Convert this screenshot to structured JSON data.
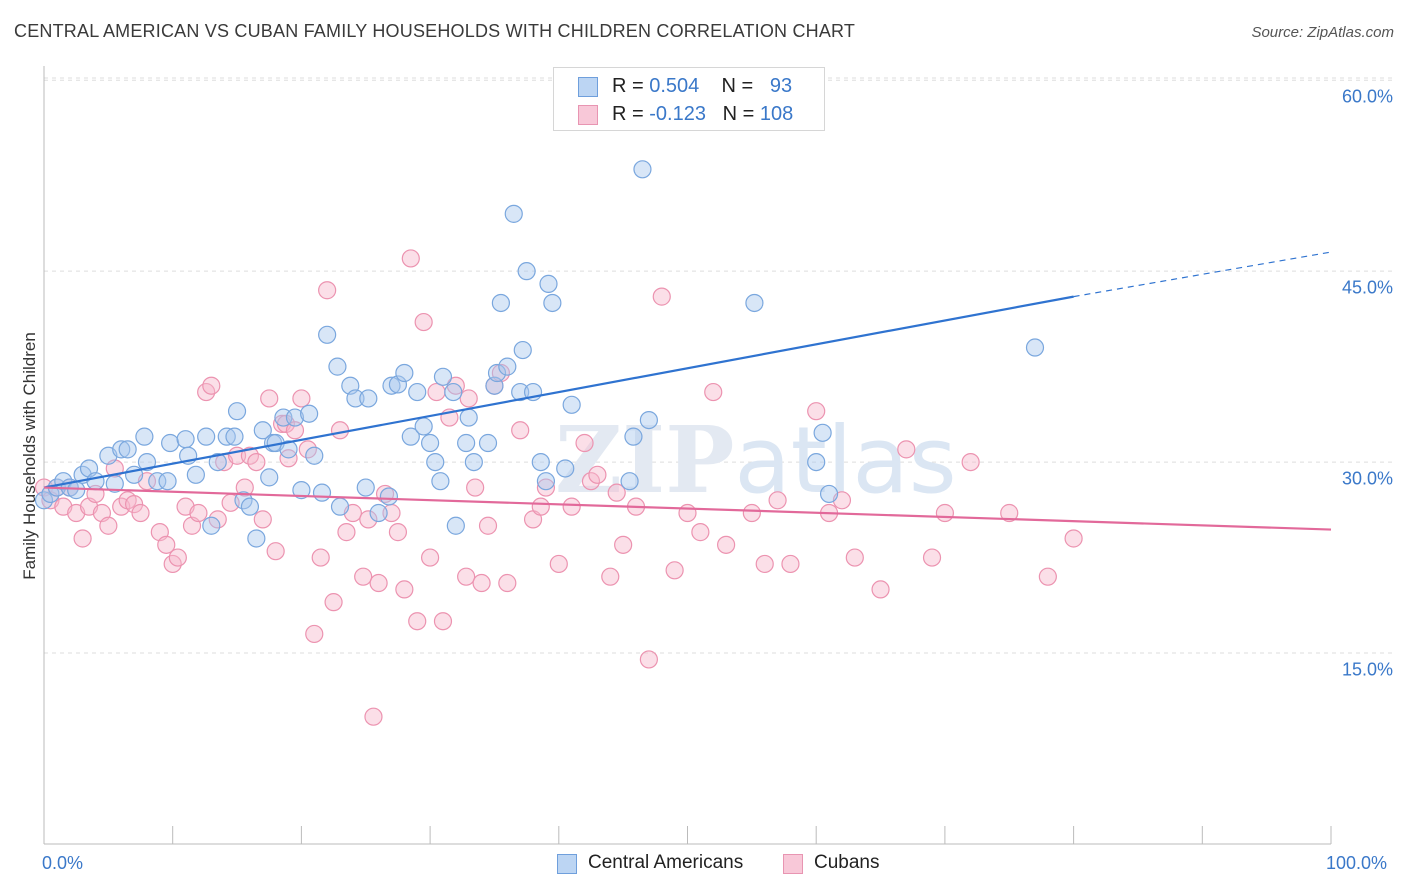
{
  "title": "CENTRAL AMERICAN VS CUBAN FAMILY HOUSEHOLDS WITH CHILDREN CORRELATION CHART",
  "source": "Source: ZipAtlas.com",
  "watermark": "ZIPatlas",
  "legend_top": {
    "rows": [
      {
        "r_label": "R = ",
        "r_value": "0.504",
        "n_label": "N = ",
        "n_value": "93"
      },
      {
        "r_label": "R = ",
        "r_value": "-0.123",
        "n_label": "N = ",
        "n_value": "108"
      }
    ]
  },
  "legend_bottom": [
    "Central Americans",
    "Cubans"
  ],
  "colors": {
    "blue_fill": "#a9c8ee",
    "blue_stroke": "#7aa7de",
    "blue_line": "#2f73d0",
    "pink_fill": "#f6b9cc",
    "pink_stroke": "#ec93b0",
    "pink_line": "#e2699a",
    "tick_text": "#3a78c9",
    "grid": "#dddddd"
  },
  "chart_data": {
    "type": "scatter",
    "title": "CENTRAL AMERICAN VS CUBAN FAMILY HOUSEHOLDS WITH CHILDREN CORRELATION CHART",
    "xlabel": "",
    "ylabel": "Family Households with Children",
    "xlim": [
      0,
      100
    ],
    "ylim": [
      0,
      63
    ],
    "y_ticks": [
      15,
      30,
      45,
      60
    ],
    "y_tick_labels": [
      "15.0%",
      "30.0%",
      "45.0%",
      "60.0%"
    ],
    "x_tick_labels": [
      "0.0%",
      "100.0%"
    ],
    "grid": "horizontal dashed",
    "legend_position": "top-center and bottom",
    "series": [
      {
        "name": "Central Americans",
        "r": 0.504,
        "n": 93,
        "trend": {
          "x0": 0,
          "y0": 28.0,
          "x1": 80,
          "y1": 43.0,
          "dashed_to_x": 100,
          "dashed_to_y": 46.5
        },
        "points": [
          [
            0,
            27
          ],
          [
            0.5,
            27.5
          ],
          [
            1,
            28
          ],
          [
            1.5,
            28.5
          ],
          [
            2,
            28
          ],
          [
            2.5,
            27.8
          ],
          [
            3,
            29
          ],
          [
            3.5,
            29.5
          ],
          [
            4,
            28.5
          ],
          [
            5,
            30.5
          ],
          [
            5.5,
            28.3
          ],
          [
            6,
            31
          ],
          [
            6.5,
            31
          ],
          [
            7,
            29
          ],
          [
            7.8,
            32
          ],
          [
            8,
            30
          ],
          [
            8.8,
            28.5
          ],
          [
            9.6,
            28.5
          ],
          [
            9.8,
            31.5
          ],
          [
            11,
            31.8
          ],
          [
            11.2,
            30.5
          ],
          [
            11.8,
            29
          ],
          [
            12.6,
            32
          ],
          [
            13,
            25
          ],
          [
            13.5,
            30
          ],
          [
            14.2,
            32
          ],
          [
            14.8,
            32
          ],
          [
            15,
            34
          ],
          [
            15.5,
            27
          ],
          [
            16,
            26.5
          ],
          [
            16.5,
            24
          ],
          [
            17,
            32.5
          ],
          [
            17.5,
            28.8
          ],
          [
            17.8,
            31.5
          ],
          [
            18,
            31.5
          ],
          [
            18.6,
            33.5
          ],
          [
            19,
            31
          ],
          [
            19.5,
            33.5
          ],
          [
            20,
            27.8
          ],
          [
            20.6,
            33.8
          ],
          [
            21,
            30.5
          ],
          [
            21.6,
            27.6
          ],
          [
            22,
            40
          ],
          [
            22.8,
            37.5
          ],
          [
            23,
            26.5
          ],
          [
            23.8,
            36
          ],
          [
            24.2,
            35
          ],
          [
            25,
            28
          ],
          [
            25.2,
            35
          ],
          [
            26,
            26
          ],
          [
            26.8,
            27.3
          ],
          [
            27,
            36
          ],
          [
            27.5,
            36.1
          ],
          [
            28,
            37
          ],
          [
            28.5,
            32
          ],
          [
            29,
            35.5
          ],
          [
            29.5,
            32.8
          ],
          [
            30,
            31.5
          ],
          [
            30.4,
            30
          ],
          [
            30.8,
            28.5
          ],
          [
            31,
            36.7
          ],
          [
            31.8,
            35.5
          ],
          [
            32,
            25
          ],
          [
            32.8,
            31.5
          ],
          [
            33,
            33.5
          ],
          [
            33.4,
            30
          ],
          [
            34.5,
            31.5
          ],
          [
            35,
            36
          ],
          [
            35.2,
            37
          ],
          [
            35.5,
            42.5
          ],
          [
            36,
            37.5
          ],
          [
            36.5,
            49.5
          ],
          [
            37,
            35.5
          ],
          [
            37.2,
            38.8
          ],
          [
            37.5,
            45
          ],
          [
            38,
            35.5
          ],
          [
            38.6,
            30
          ],
          [
            39,
            28.5
          ],
          [
            39.2,
            44
          ],
          [
            39.5,
            42.5
          ],
          [
            40.5,
            29.5
          ],
          [
            41,
            34.5
          ],
          [
            45.5,
            28.5
          ],
          [
            45.8,
            32
          ],
          [
            46.5,
            53
          ],
          [
            47,
            33.3
          ],
          [
            55.2,
            42.5
          ],
          [
            60,
            30
          ],
          [
            60.5,
            32.3
          ],
          [
            61,
            27.5
          ],
          [
            77,
            39
          ]
        ]
      },
      {
        "name": "Cubans",
        "r": -0.123,
        "n": 108,
        "trend": {
          "x0": 0,
          "y0": 28.0,
          "x1": 100,
          "y1": 24.7
        },
        "points": [
          [
            0,
            28
          ],
          [
            0.5,
            27
          ],
          [
            1,
            28
          ],
          [
            1.5,
            26.5
          ],
          [
            2,
            28
          ],
          [
            2.5,
            26
          ],
          [
            3,
            24
          ],
          [
            3.5,
            26.5
          ],
          [
            4,
            27.5
          ],
          [
            4.5,
            26
          ],
          [
            5,
            25
          ],
          [
            5.5,
            29.5
          ],
          [
            6,
            26.5
          ],
          [
            6.5,
            27
          ],
          [
            7,
            26.7
          ],
          [
            7.5,
            26
          ],
          [
            8,
            28.5
          ],
          [
            9,
            24.5
          ],
          [
            9.5,
            23.5
          ],
          [
            10,
            22
          ],
          [
            10.4,
            22.5
          ],
          [
            11,
            26.5
          ],
          [
            11.5,
            25
          ],
          [
            12,
            26
          ],
          [
            12.6,
            35.5
          ],
          [
            13,
            36
          ],
          [
            13.5,
            25.5
          ],
          [
            14,
            30
          ],
          [
            14.5,
            26.8
          ],
          [
            15,
            30.5
          ],
          [
            15.6,
            28
          ],
          [
            16,
            30.5
          ],
          [
            16.5,
            30
          ],
          [
            17,
            25.5
          ],
          [
            17.5,
            35
          ],
          [
            18,
            23
          ],
          [
            18.5,
            33
          ],
          [
            18.8,
            33
          ],
          [
            19,
            30.3
          ],
          [
            19.5,
            32.5
          ],
          [
            20,
            35
          ],
          [
            20.5,
            31
          ],
          [
            21,
            16.5
          ],
          [
            21.5,
            22.5
          ],
          [
            22,
            43.5
          ],
          [
            22.5,
            19
          ],
          [
            23,
            32.5
          ],
          [
            23.5,
            24.5
          ],
          [
            24,
            26
          ],
          [
            24.8,
            21
          ],
          [
            25.2,
            25.5
          ],
          [
            25.6,
            10
          ],
          [
            26,
            20.5
          ],
          [
            26.5,
            27.5
          ],
          [
            27,
            26
          ],
          [
            27.5,
            24.5
          ],
          [
            28,
            20
          ],
          [
            28.5,
            46
          ],
          [
            29,
            17.5
          ],
          [
            29.5,
            41
          ],
          [
            30,
            22.5
          ],
          [
            30.5,
            35.5
          ],
          [
            31,
            17.5
          ],
          [
            31.5,
            33.5
          ],
          [
            32,
            36
          ],
          [
            32.8,
            21
          ],
          [
            33,
            35
          ],
          [
            33.5,
            28
          ],
          [
            34,
            20.5
          ],
          [
            34.5,
            25
          ],
          [
            35,
            36
          ],
          [
            35.5,
            37
          ],
          [
            36,
            20.5
          ],
          [
            37,
            32.5
          ],
          [
            38,
            25.5
          ],
          [
            38.6,
            26.5
          ],
          [
            39,
            28
          ],
          [
            40,
            22
          ],
          [
            41,
            26.5
          ],
          [
            42,
            31.5
          ],
          [
            42.5,
            28.5
          ],
          [
            43,
            29
          ],
          [
            44,
            21
          ],
          [
            44.5,
            27.6
          ],
          [
            45,
            23.5
          ],
          [
            46,
            26.5
          ],
          [
            47,
            14.5
          ],
          [
            48,
            43
          ],
          [
            49,
            21.5
          ],
          [
            50,
            26
          ],
          [
            51,
            24.5
          ],
          [
            52,
            35.5
          ],
          [
            53,
            23.5
          ],
          [
            55,
            26
          ],
          [
            56,
            22
          ],
          [
            57,
            27
          ],
          [
            58,
            22
          ],
          [
            60,
            34
          ],
          [
            61,
            26
          ],
          [
            62,
            27
          ],
          [
            63,
            22.5
          ],
          [
            65,
            20
          ],
          [
            67,
            31
          ],
          [
            69,
            22.5
          ],
          [
            70,
            26
          ],
          [
            72,
            30
          ],
          [
            75,
            26
          ],
          [
            78,
            21
          ],
          [
            80,
            24
          ]
        ]
      }
    ]
  }
}
